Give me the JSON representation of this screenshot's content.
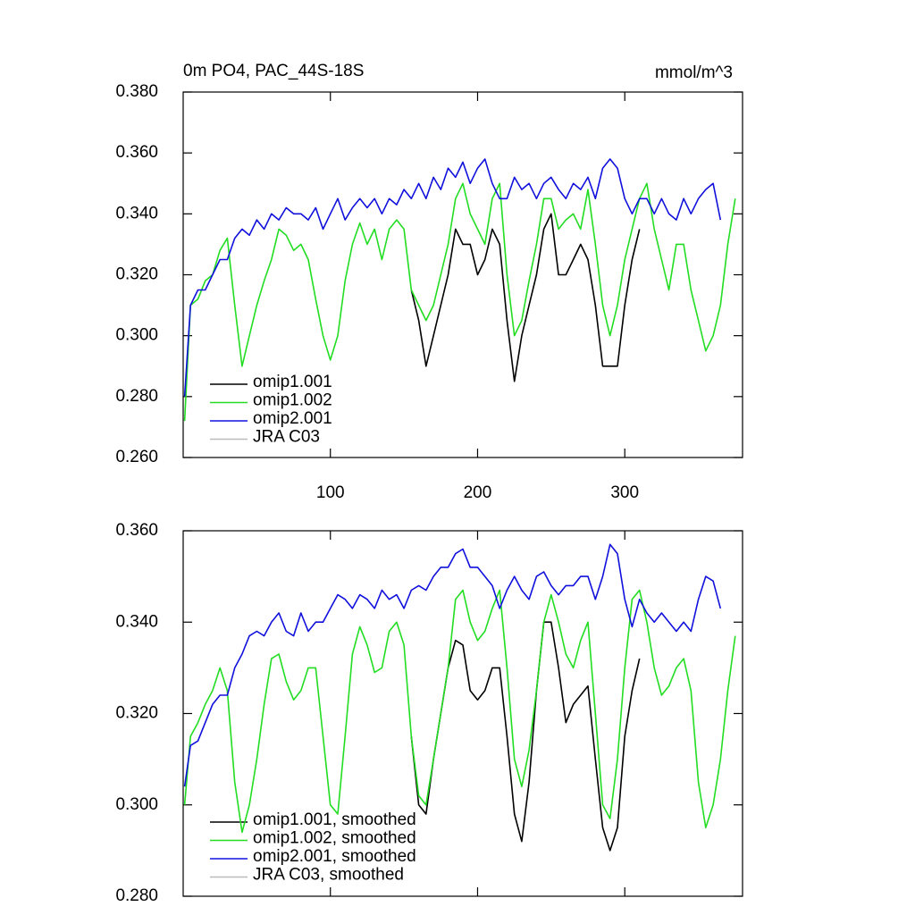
{
  "chart_data": [
    {
      "type": "line",
      "title": "0m PO4, PAC_44S-18S",
      "units": "mmol/m^3",
      "xlim": [
        0,
        380
      ],
      "xticks": [
        100,
        200,
        300
      ],
      "xtick_labels": true,
      "ylim": [
        0.26,
        0.38
      ],
      "yticks": [
        {
          "value": 0.26,
          "label": "0.260"
        },
        {
          "value": 0.28,
          "label": "0.280"
        },
        {
          "value": 0.3,
          "label": "0.300"
        },
        {
          "value": 0.32,
          "label": "0.320"
        },
        {
          "value": 0.34,
          "label": "0.340"
        },
        {
          "value": 0.36,
          "label": "0.360"
        },
        {
          "value": 0.38,
          "label": "0.380"
        }
      ],
      "series": [
        {
          "name": "omip1.001",
          "color": "#000000",
          "x": [
            155,
            160,
            165,
            170,
            175,
            180,
            185,
            190,
            195,
            200,
            205,
            210,
            215,
            220,
            225,
            230,
            235,
            240,
            245,
            250,
            255,
            260,
            265,
            270,
            275,
            280,
            285,
            290,
            295,
            300,
            305,
            310
          ],
          "values": [
            0.315,
            0.305,
            0.29,
            0.3,
            0.31,
            0.32,
            0.335,
            0.33,
            0.33,
            0.32,
            0.325,
            0.335,
            0.33,
            0.305,
            0.285,
            0.3,
            0.31,
            0.32,
            0.335,
            0.34,
            0.32,
            0.32,
            0.325,
            0.33,
            0.325,
            0.31,
            0.29,
            0.29,
            0.29,
            0.31,
            0.325,
            0.335
          ]
        },
        {
          "name": "omip1.002",
          "color": "#22dd22",
          "x": [
            1,
            5,
            10,
            15,
            20,
            25,
            30,
            35,
            40,
            45,
            50,
            55,
            60,
            65,
            70,
            75,
            80,
            85,
            90,
            95,
            100,
            105,
            110,
            115,
            120,
            125,
            130,
            135,
            140,
            145,
            150,
            155,
            160,
            165,
            170,
            175,
            180,
            185,
            190,
            195,
            200,
            205,
            210,
            215,
            220,
            225,
            230,
            235,
            240,
            245,
            250,
            255,
            260,
            265,
            270,
            275,
            280,
            285,
            290,
            295,
            300,
            305,
            310,
            315,
            320,
            325,
            330,
            335,
            340,
            345,
            350,
            355,
            360,
            365,
            370,
            375
          ],
          "values": [
            0.272,
            0.31,
            0.312,
            0.318,
            0.32,
            0.328,
            0.332,
            0.31,
            0.29,
            0.3,
            0.31,
            0.318,
            0.325,
            0.335,
            0.333,
            0.328,
            0.33,
            0.325,
            0.312,
            0.3,
            0.292,
            0.3,
            0.318,
            0.33,
            0.337,
            0.33,
            0.335,
            0.325,
            0.335,
            0.338,
            0.335,
            0.315,
            0.31,
            0.305,
            0.31,
            0.32,
            0.33,
            0.345,
            0.35,
            0.34,
            0.335,
            0.33,
            0.345,
            0.35,
            0.32,
            0.3,
            0.305,
            0.318,
            0.33,
            0.345,
            0.345,
            0.335,
            0.338,
            0.34,
            0.335,
            0.348,
            0.33,
            0.31,
            0.3,
            0.31,
            0.325,
            0.335,
            0.345,
            0.35,
            0.335,
            0.325,
            0.315,
            0.33,
            0.33,
            0.315,
            0.305,
            0.295,
            0.3,
            0.31,
            0.33,
            0.345
          ]
        },
        {
          "name": "omip2.001",
          "color": "#1010dd",
          "x": [
            1,
            5,
            10,
            15,
            20,
            25,
            30,
            35,
            40,
            45,
            50,
            55,
            60,
            65,
            70,
            75,
            80,
            85,
            90,
            95,
            100,
            105,
            110,
            115,
            120,
            125,
            130,
            135,
            140,
            145,
            150,
            155,
            160,
            165,
            170,
            175,
            180,
            185,
            190,
            195,
            200,
            205,
            210,
            215,
            220,
            225,
            230,
            235,
            240,
            245,
            250,
            255,
            260,
            265,
            270,
            275,
            280,
            285,
            290,
            295,
            300,
            305,
            310,
            315,
            320,
            325,
            330,
            335,
            340,
            345,
            350,
            355,
            360,
            365
          ],
          "values": [
            0.28,
            0.31,
            0.315,
            0.315,
            0.32,
            0.325,
            0.325,
            0.332,
            0.335,
            0.333,
            0.338,
            0.335,
            0.34,
            0.338,
            0.342,
            0.34,
            0.34,
            0.338,
            0.342,
            0.335,
            0.34,
            0.345,
            0.338,
            0.342,
            0.345,
            0.342,
            0.345,
            0.34,
            0.345,
            0.343,
            0.348,
            0.345,
            0.35,
            0.345,
            0.352,
            0.348,
            0.355,
            0.352,
            0.357,
            0.35,
            0.355,
            0.358,
            0.35,
            0.345,
            0.345,
            0.352,
            0.348,
            0.35,
            0.345,
            0.35,
            0.352,
            0.348,
            0.345,
            0.35,
            0.348,
            0.352,
            0.345,
            0.355,
            0.358,
            0.355,
            0.345,
            0.34,
            0.345,
            0.345,
            0.34,
            0.345,
            0.34,
            0.338,
            0.345,
            0.34,
            0.345,
            0.348,
            0.35,
            0.338
          ]
        },
        {
          "name": "JRA C03",
          "color": "#bbbbbb",
          "x": [],
          "values": []
        }
      ]
    },
    {
      "type": "line",
      "xlim": [
        0,
        380
      ],
      "xticks": [
        100,
        200,
        300
      ],
      "xtick_labels": false,
      "ylim": [
        0.28,
        0.36
      ],
      "yticks": [
        {
          "value": 0.28,
          "label": "0.280"
        },
        {
          "value": 0.3,
          "label": "0.300"
        },
        {
          "value": 0.32,
          "label": "0.320"
        },
        {
          "value": 0.34,
          "label": "0.340"
        },
        {
          "value": 0.36,
          "label": "0.360"
        }
      ],
      "series": [
        {
          "name": "omip1.001, smoothed",
          "color": "#000000",
          "x": [
            155,
            160,
            165,
            170,
            175,
            180,
            185,
            190,
            195,
            200,
            205,
            210,
            215,
            220,
            225,
            230,
            235,
            240,
            245,
            250,
            255,
            260,
            265,
            270,
            275,
            280,
            285,
            290,
            295,
            300,
            305,
            310
          ],
          "values": [
            0.315,
            0.3,
            0.298,
            0.31,
            0.32,
            0.33,
            0.336,
            0.335,
            0.325,
            0.323,
            0.325,
            0.33,
            0.33,
            0.315,
            0.298,
            0.292,
            0.305,
            0.325,
            0.34,
            0.34,
            0.33,
            0.318,
            0.322,
            0.324,
            0.326,
            0.31,
            0.295,
            0.29,
            0.295,
            0.315,
            0.325,
            0.332
          ]
        },
        {
          "name": "omip1.002, smoothed",
          "color": "#22dd22",
          "x": [
            1,
            5,
            10,
            15,
            20,
            25,
            30,
            35,
            40,
            45,
            50,
            55,
            60,
            65,
            70,
            75,
            80,
            85,
            90,
            95,
            100,
            105,
            110,
            115,
            120,
            125,
            130,
            135,
            140,
            145,
            150,
            155,
            160,
            165,
            170,
            175,
            180,
            185,
            190,
            195,
            200,
            205,
            210,
            215,
            220,
            225,
            230,
            235,
            240,
            245,
            250,
            255,
            260,
            265,
            270,
            275,
            280,
            285,
            290,
            295,
            300,
            305,
            310,
            315,
            320,
            325,
            330,
            335,
            340,
            345,
            350,
            355,
            360,
            365,
            370,
            375
          ],
          "values": [
            0.3,
            0.315,
            0.318,
            0.322,
            0.325,
            0.33,
            0.325,
            0.305,
            0.294,
            0.3,
            0.31,
            0.322,
            0.332,
            0.333,
            0.327,
            0.323,
            0.325,
            0.33,
            0.33,
            0.315,
            0.3,
            0.298,
            0.315,
            0.333,
            0.339,
            0.335,
            0.329,
            0.33,
            0.338,
            0.34,
            0.335,
            0.315,
            0.302,
            0.3,
            0.31,
            0.32,
            0.33,
            0.345,
            0.347,
            0.34,
            0.336,
            0.338,
            0.343,
            0.347,
            0.33,
            0.31,
            0.304,
            0.312,
            0.325,
            0.34,
            0.346,
            0.34,
            0.333,
            0.33,
            0.336,
            0.34,
            0.32,
            0.3,
            0.297,
            0.31,
            0.33,
            0.345,
            0.347,
            0.34,
            0.33,
            0.324,
            0.326,
            0.33,
            0.332,
            0.325,
            0.305,
            0.295,
            0.3,
            0.31,
            0.325,
            0.337
          ]
        },
        {
          "name": "omip2.001, smoothed",
          "color": "#1010dd",
          "x": [
            1,
            5,
            10,
            15,
            20,
            25,
            30,
            35,
            40,
            45,
            50,
            55,
            60,
            65,
            70,
            75,
            80,
            85,
            90,
            95,
            100,
            105,
            110,
            115,
            120,
            125,
            130,
            135,
            140,
            145,
            150,
            155,
            160,
            165,
            170,
            175,
            180,
            185,
            190,
            195,
            200,
            205,
            210,
            215,
            220,
            225,
            230,
            235,
            240,
            245,
            250,
            255,
            260,
            265,
            270,
            275,
            280,
            285,
            290,
            295,
            300,
            305,
            310,
            315,
            320,
            325,
            330,
            335,
            340,
            345,
            350,
            355,
            360,
            365
          ],
          "values": [
            0.304,
            0.313,
            0.314,
            0.318,
            0.322,
            0.324,
            0.324,
            0.33,
            0.333,
            0.337,
            0.338,
            0.337,
            0.34,
            0.342,
            0.338,
            0.337,
            0.342,
            0.338,
            0.34,
            0.34,
            0.343,
            0.346,
            0.345,
            0.343,
            0.346,
            0.345,
            0.343,
            0.347,
            0.345,
            0.346,
            0.343,
            0.347,
            0.348,
            0.347,
            0.35,
            0.352,
            0.352,
            0.355,
            0.356,
            0.352,
            0.352,
            0.35,
            0.348,
            0.343,
            0.347,
            0.35,
            0.347,
            0.345,
            0.35,
            0.351,
            0.348,
            0.346,
            0.348,
            0.348,
            0.35,
            0.35,
            0.345,
            0.35,
            0.357,
            0.355,
            0.345,
            0.339,
            0.345,
            0.342,
            0.34,
            0.342,
            0.34,
            0.338,
            0.34,
            0.338,
            0.345,
            0.35,
            0.349,
            0.343
          ]
        },
        {
          "name": "JRA C03, smoothed",
          "color": "#bbbbbb",
          "x": [],
          "values": []
        }
      ]
    }
  ]
}
